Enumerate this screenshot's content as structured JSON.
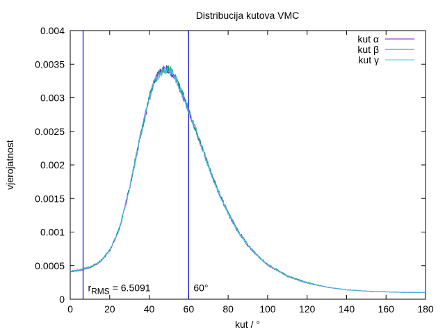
{
  "chart_data": {
    "type": "line",
    "title": "Distribucija kutova VMC",
    "xlabel": "kut / °",
    "ylabel": "vjerojatnost",
    "xlim": [
      0,
      180
    ],
    "ylim": [
      0,
      0.004
    ],
    "xticks": [
      0,
      20,
      40,
      60,
      80,
      100,
      120,
      140,
      160,
      180
    ],
    "xtick_labels": [
      "0",
      "20",
      "40",
      "60",
      "80",
      "100",
      "120",
      "140",
      "160",
      "180"
    ],
    "yticks": [
      0,
      0.0005,
      0.001,
      0.0015,
      0.002,
      0.0025,
      0.003,
      0.0035,
      0.004
    ],
    "ytick_labels": [
      "0",
      "0.0005",
      "0.001",
      "0.0015",
      "0.002",
      "0.0025",
      "0.003",
      "0.0035",
      "0.004"
    ],
    "grid": false,
    "legend_position": "top-right",
    "series": [
      {
        "name": "kut α",
        "color": "#9400d3",
        "x": [
          0,
          5,
          10,
          15,
          20,
          25,
          30,
          35,
          38,
          40,
          42,
          44,
          46,
          48,
          50,
          52,
          54,
          56,
          58,
          60,
          62,
          65,
          70,
          75,
          80,
          85,
          90,
          95,
          100,
          110,
          120,
          130,
          140,
          150,
          160,
          170,
          180
        ],
        "values": [
          0.00041,
          0.00043,
          0.00047,
          0.00055,
          0.00072,
          0.00105,
          0.00165,
          0.00235,
          0.00275,
          0.00298,
          0.00318,
          0.00331,
          0.00339,
          0.00342,
          0.00341,
          0.00335,
          0.00325,
          0.00311,
          0.00297,
          0.00281,
          0.00264,
          0.0024,
          0.00198,
          0.0016,
          0.00128,
          0.00101,
          0.0008,
          0.00064,
          0.00051,
          0.00034,
          0.00024,
          0.00018,
          0.00014,
          0.00012,
          0.00011,
          0.0001,
          0.0001
        ]
      },
      {
        "name": "kut β",
        "color": "#009e73",
        "x": [
          0,
          5,
          10,
          15,
          20,
          25,
          30,
          35,
          38,
          40,
          42,
          44,
          46,
          48,
          50,
          52,
          54,
          56,
          58,
          60,
          62,
          65,
          70,
          75,
          80,
          85,
          90,
          95,
          100,
          110,
          120,
          130,
          140,
          150,
          160,
          170,
          180
        ],
        "values": [
          0.00042,
          0.00044,
          0.00048,
          0.00056,
          0.00073,
          0.00106,
          0.00166,
          0.00236,
          0.00276,
          0.00299,
          0.00319,
          0.00332,
          0.0034,
          0.00343,
          0.00342,
          0.00336,
          0.00326,
          0.00312,
          0.00298,
          0.00282,
          0.00265,
          0.00241,
          0.00199,
          0.00161,
          0.00129,
          0.00102,
          0.00081,
          0.00065,
          0.00052,
          0.00035,
          0.00025,
          0.00018,
          0.00014,
          0.00012,
          0.00011,
          0.0001,
          0.0001
        ]
      },
      {
        "name": "kut γ",
        "color": "#56b4e9",
        "x": [
          0,
          5,
          10,
          15,
          20,
          25,
          30,
          35,
          38,
          40,
          42,
          44,
          46,
          48,
          50,
          52,
          54,
          56,
          58,
          60,
          62,
          65,
          70,
          75,
          80,
          85,
          90,
          95,
          100,
          110,
          120,
          130,
          140,
          150,
          160,
          170,
          180
        ],
        "values": [
          0.00041,
          0.00044,
          0.00047,
          0.00055,
          0.00072,
          0.00105,
          0.00165,
          0.00235,
          0.00275,
          0.00298,
          0.00318,
          0.00331,
          0.00339,
          0.00342,
          0.00341,
          0.00335,
          0.00325,
          0.00311,
          0.00297,
          0.00281,
          0.00264,
          0.0024,
          0.00198,
          0.0016,
          0.00128,
          0.00101,
          0.0008,
          0.00064,
          0.00051,
          0.00034,
          0.00024,
          0.00018,
          0.00014,
          0.00012,
          0.00011,
          0.0001,
          0.0001
        ]
      }
    ],
    "vertical_lines": [
      {
        "x": 6.5091,
        "color": "#0000cc"
      },
      {
        "x": 60,
        "color": "#0000cc"
      }
    ],
    "annotations": [
      {
        "text_main": "r",
        "text_sub": "RMS",
        "text_rest": " = 6.5091",
        "x": 6.5091,
        "y": 0.00015
      },
      {
        "text": "60°",
        "x": 60,
        "y": 0.00015
      }
    ]
  }
}
